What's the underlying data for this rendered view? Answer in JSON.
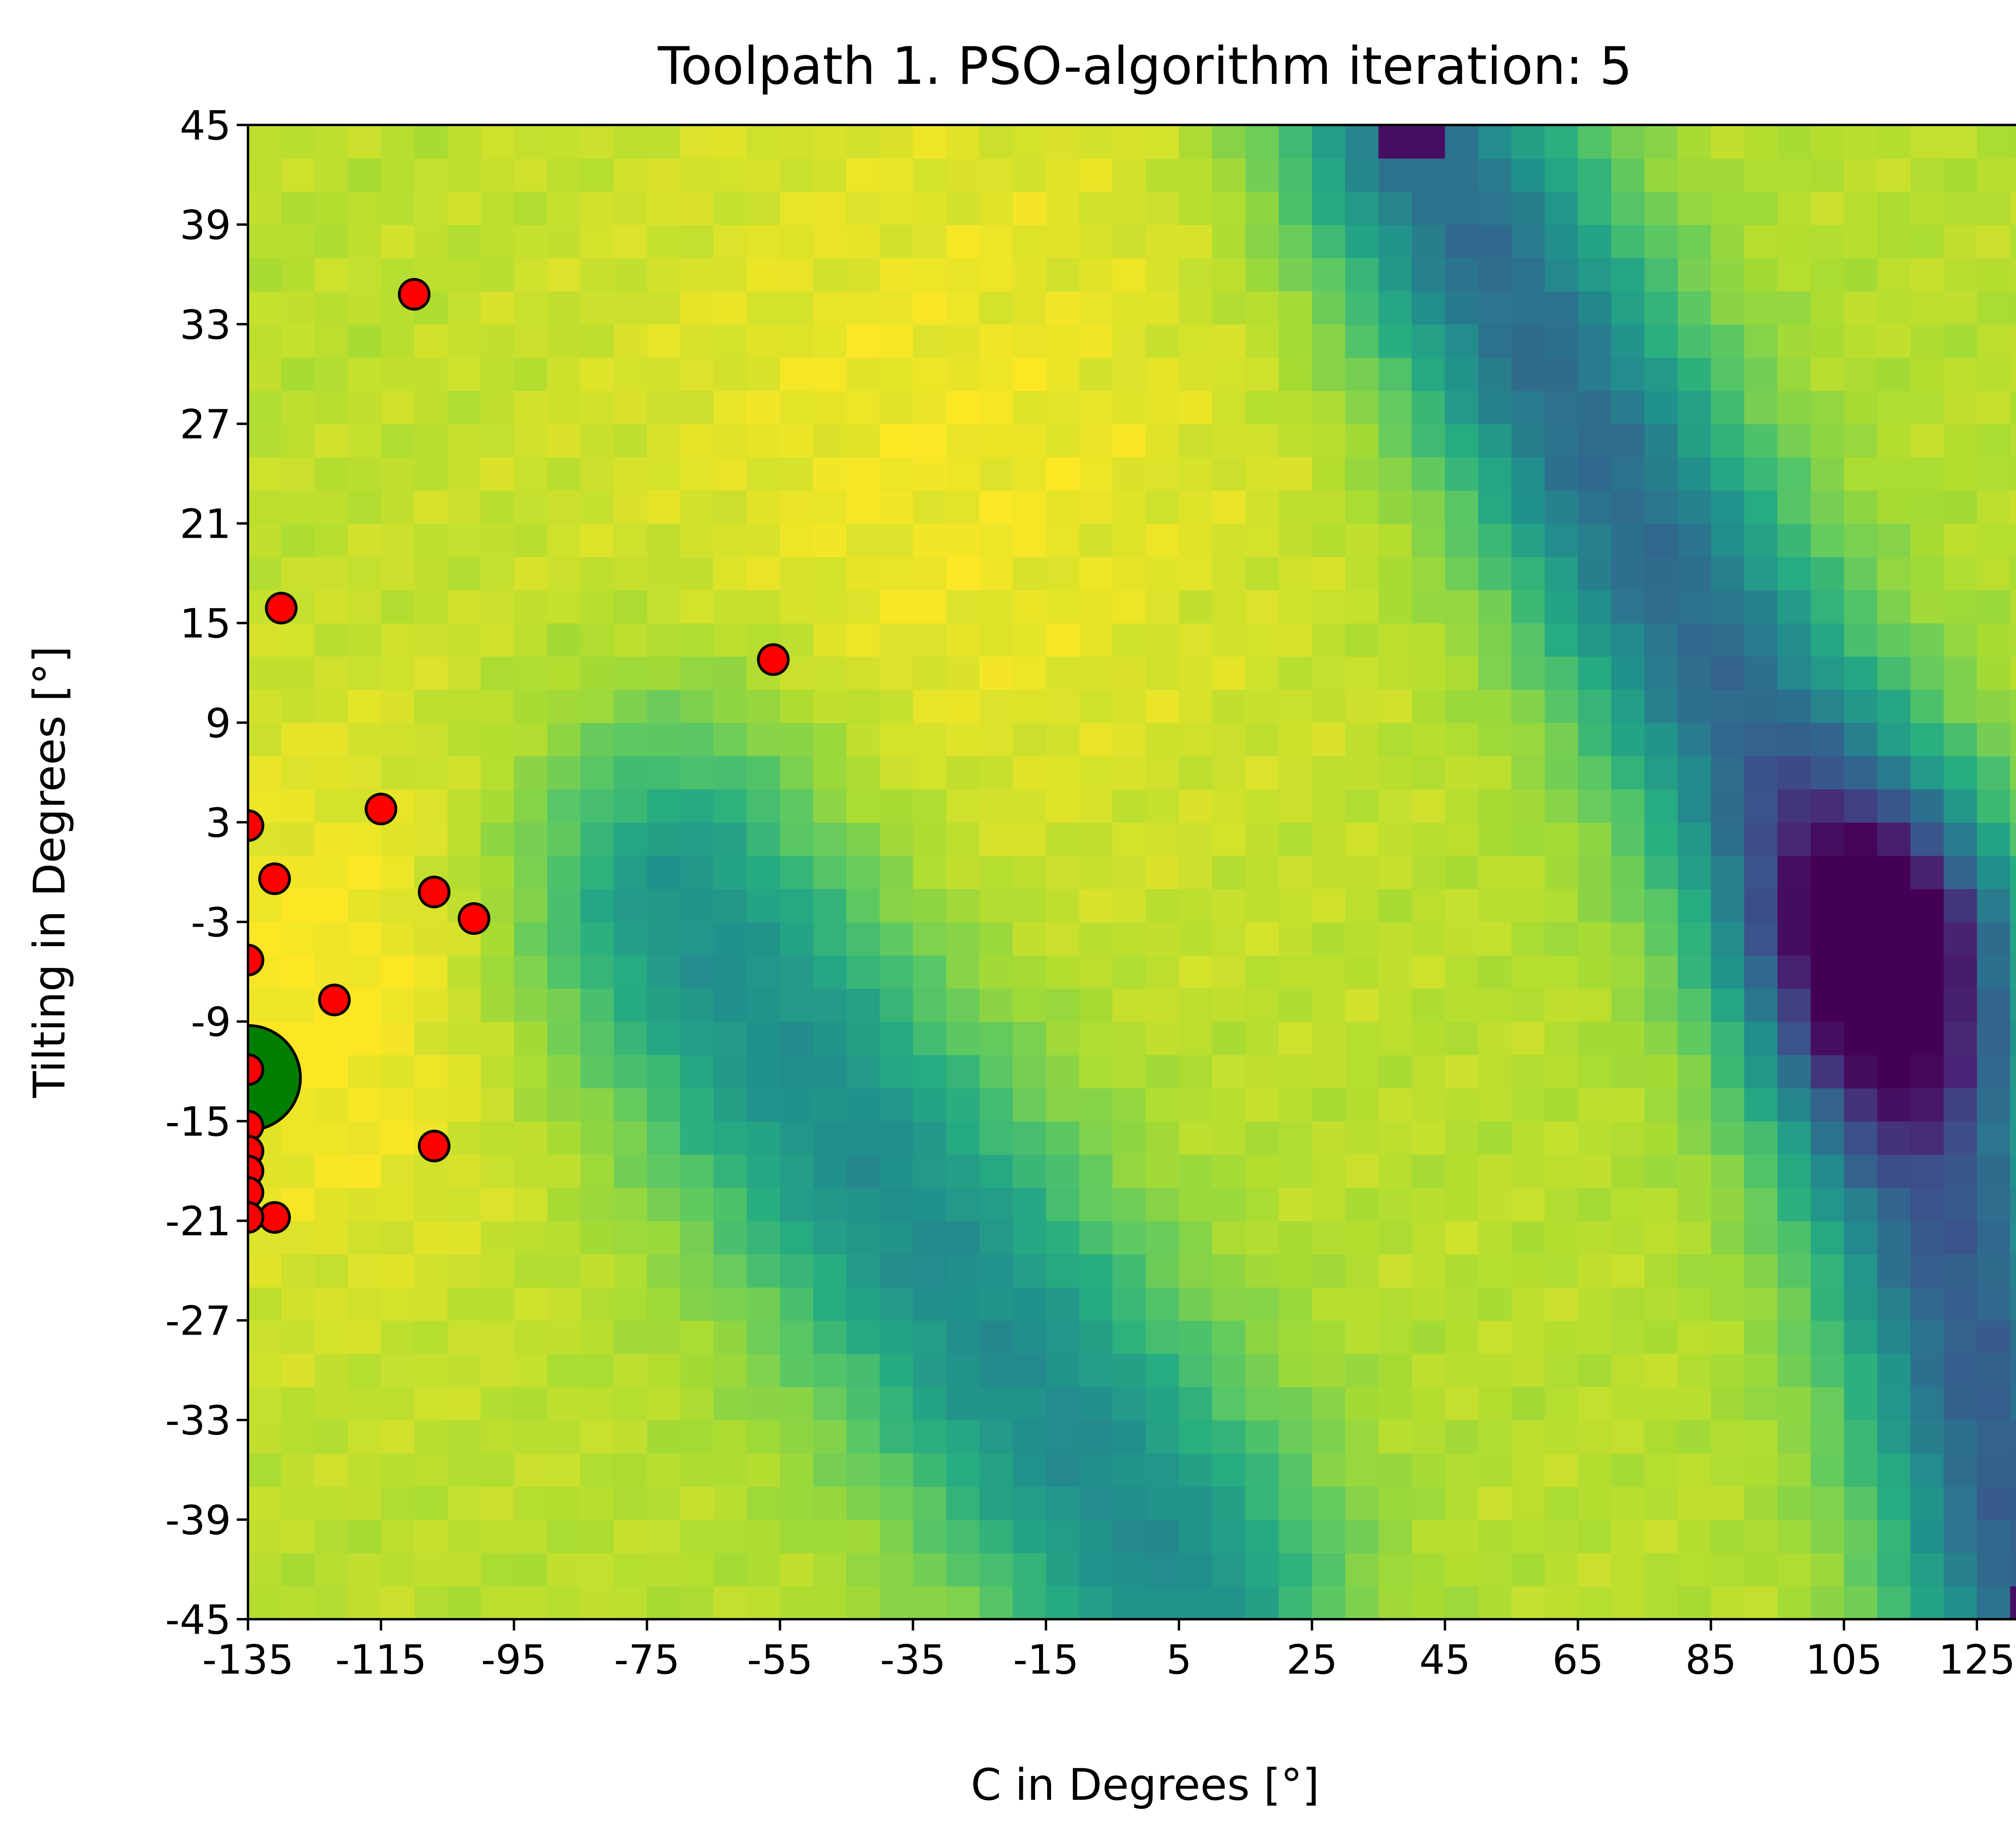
{
  "chart_data": {
    "type": "heatmap",
    "title": "Toolpath 1. PSO-algorithm iteration: 5",
    "xlabel": "C in Degrees [°]",
    "ylabel": "Tilting in Degrees [°]",
    "xlim": [
      -135,
      135
    ],
    "ylim": [
      -45,
      45
    ],
    "x_ticks": [
      -135,
      -115,
      -95,
      -75,
      -55,
      -35,
      -15,
      5,
      25,
      45,
      65,
      85,
      105,
      125
    ],
    "x_tick_labels": [
      "-135",
      "-115",
      "-95",
      "-75",
      "-55",
      "-35",
      "-15",
      "5",
      "25",
      "45",
      "65",
      "85",
      "105",
      "125"
    ],
    "y_ticks": [
      45,
      39,
      33,
      27,
      21,
      15,
      9,
      3,
      -3,
      -9,
      -15,
      -21,
      -27,
      -33,
      -39,
      -45
    ],
    "y_tick_labels": [
      "45",
      "39",
      "33",
      "27",
      "21",
      "15",
      "9",
      "3",
      "-3",
      "-9",
      "-15",
      "-21",
      "-27",
      "-33",
      "-39",
      "-45"
    ],
    "grid": false,
    "colormap": "viridis",
    "grid_cell_degrees": {
      "c": 5,
      "tilt": 2
    },
    "intensity_field": {
      "base": 0.9,
      "low_valleys": [
        {
          "c_start": 40,
          "tilt_start": 45,
          "c_end": 110,
          "tilt_end": -5,
          "depth": 0.55,
          "width": 14
        },
        {
          "c_start": 110,
          "tilt_start": -5,
          "c_end": 135,
          "tilt_end": -45,
          "depth": 0.6,
          "width": 14
        },
        {
          "c_start": -70,
          "tilt_start": -2,
          "c_end": 5,
          "tilt_end": -43,
          "depth": 0.42,
          "width": 16
        }
      ],
      "high_regions": [
        {
          "c": -125,
          "tilt": -8,
          "radius": 25,
          "boost": 0.1
        },
        {
          "c": -30,
          "tilt": 25,
          "radius": 40,
          "boost": 0.08
        }
      ],
      "dark_spots": [
        {
          "c": 40,
          "tilt": 45,
          "value": 0.05
        },
        {
          "c": 135,
          "tilt": -45,
          "value": 0.05
        }
      ]
    },
    "particles": [
      {
        "c": -110,
        "tilt": 34.8
      },
      {
        "c": -130,
        "tilt": 15.9
      },
      {
        "c": -56,
        "tilt": 12.8
      },
      {
        "c": -135,
        "tilt": 2.8
      },
      {
        "c": -115,
        "tilt": 3.8
      },
      {
        "c": -131,
        "tilt": -0.4
      },
      {
        "c": -107,
        "tilt": -1.2
      },
      {
        "c": -101,
        "tilt": -2.8
      },
      {
        "c": -135,
        "tilt": -5.3
      },
      {
        "c": -122,
        "tilt": -7.7
      },
      {
        "c": -135,
        "tilt": -11.9
      },
      {
        "c": -135,
        "tilt": -15.3
      },
      {
        "c": -107,
        "tilt": -16.5
      },
      {
        "c": -135,
        "tilt": -16.8
      },
      {
        "c": -135,
        "tilt": -18.0
      },
      {
        "c": -135,
        "tilt": -19.3
      },
      {
        "c": -131,
        "tilt": -20.8
      },
      {
        "c": -135,
        "tilt": -20.8
      }
    ],
    "best": {
      "c": -135,
      "tilt": -12.4
    },
    "colors": {
      "particle_fill": "#ff0000",
      "best_fill": "#007f00",
      "marker_edge": "#000000"
    }
  }
}
